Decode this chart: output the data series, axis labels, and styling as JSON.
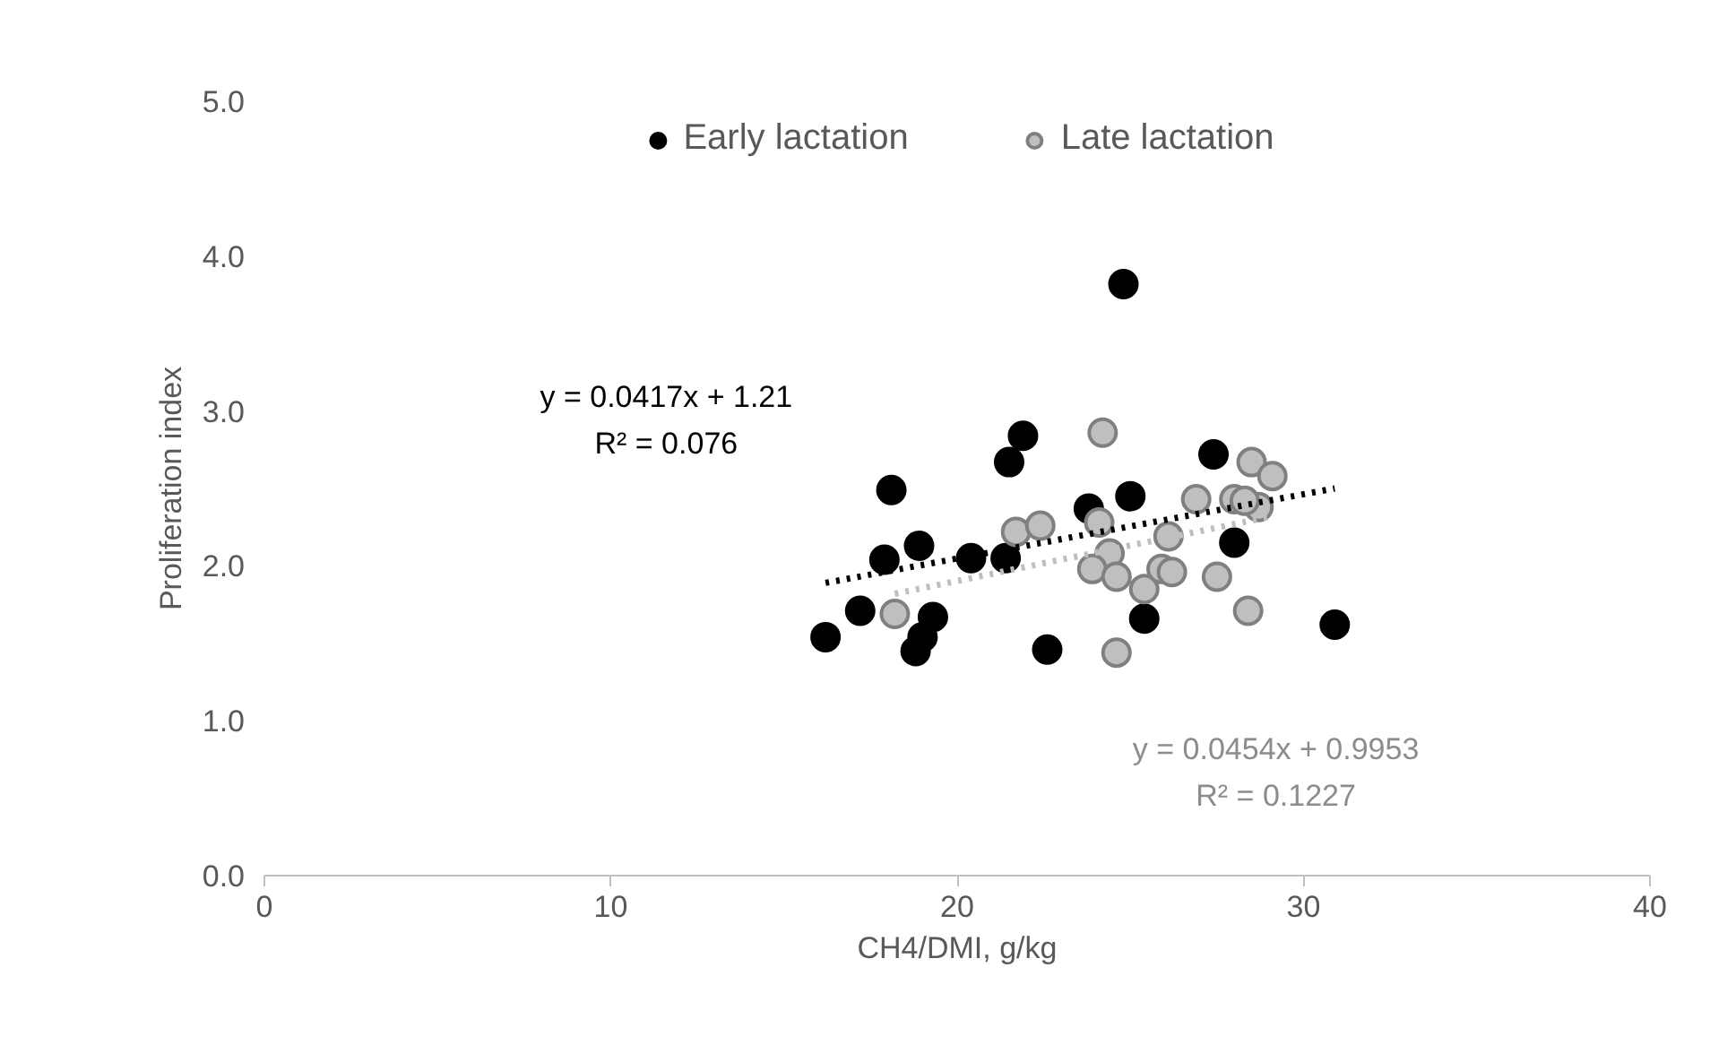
{
  "chart_data": {
    "type": "scatter",
    "xlabel": "CH4/DMI, g/kg",
    "ylabel": "Proliferation index",
    "xlim": [
      0,
      40
    ],
    "xticks": [
      0,
      10,
      20,
      30,
      40
    ],
    "ylim": [
      0,
      5
    ],
    "yticks": [
      {
        "value": 0,
        "label": "0.0"
      },
      {
        "value": 1,
        "label": "1.0"
      },
      {
        "value": 2,
        "label": "2.0"
      },
      {
        "value": 3,
        "label": "3.0"
      },
      {
        "value": 4,
        "label": "4.0"
      },
      {
        "value": 5,
        "label": "5.0"
      }
    ],
    "grid": false,
    "legend": "top",
    "series": [
      {
        "name": "Early lactation",
        "marker": "circle",
        "color": "#000000",
        "x": [
          16.2,
          17.2,
          17.9,
          18.1,
          18.9,
          18.8,
          19.0,
          19.3,
          20.4,
          21.4,
          21.5,
          21.9,
          22.6,
          23.8,
          24.8,
          25.0,
          25.4,
          27.4,
          28.0,
          30.9
        ],
        "values": [
          1.54,
          1.71,
          2.04,
          2.49,
          2.13,
          1.45,
          1.54,
          1.67,
          2.05,
          2.05,
          2.67,
          2.84,
          1.46,
          2.37,
          3.82,
          2.45,
          1.66,
          2.72,
          2.15,
          1.62
        ]
      },
      {
        "name": "Late lactation",
        "marker": "circle",
        "color": "#bfbfbf",
        "x": [
          18.2,
          21.7,
          22.4,
          24.2,
          24.1,
          24.4,
          23.9,
          24.6,
          24.6,
          25.4,
          26.1,
          25.9,
          26.2,
          26.9,
          27.5,
          28.0,
          28.4,
          28.5,
          29.1,
          28.7,
          28.3
        ],
        "values": [
          1.69,
          2.22,
          2.26,
          2.86,
          2.28,
          2.08,
          1.98,
          1.93,
          1.44,
          1.85,
          2.19,
          1.98,
          1.96,
          2.43,
          1.93,
          2.43,
          1.71,
          2.67,
          2.58,
          2.38,
          2.42
        ]
      },
      {
        "type": "line",
        "line_style": "dotted",
        "color": "#000000",
        "x": [
          16.2,
          30.9
        ],
        "values": [
          1.89,
          2.5
        ]
      },
      {
        "type": "line",
        "line_style": "dotted",
        "color": "#bfbfbf",
        "x": [
          18.2,
          29.1
        ],
        "values": [
          1.82,
          2.32
        ]
      }
    ],
    "annotations": [
      "y = 0.0417x + 1.21\nR² = 0.076",
      "y = 0.0454x + 0.9953\nR² = 0.1227"
    ]
  }
}
